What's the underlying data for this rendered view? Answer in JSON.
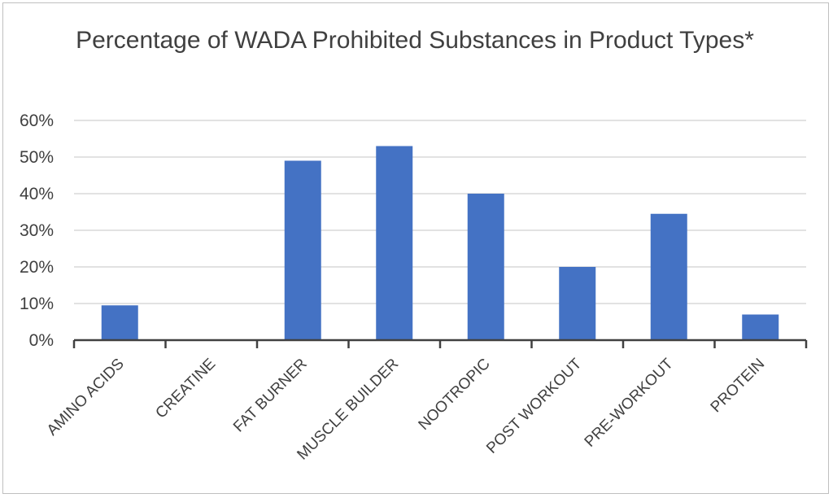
{
  "chart_data": {
    "type": "bar",
    "title": "Percentage of WADA Prohibited Substances in Product Types*",
    "xlabel": "",
    "ylabel": "",
    "categories": [
      "AMINO ACIDS",
      "CREATINE",
      "FAT BURNER",
      "MUSCLE BUILDER",
      "NOOTROPIC",
      "POST WORKOUT",
      "PRE-WORKOUT",
      "PROTEIN"
    ],
    "values": [
      9.5,
      0,
      49,
      53,
      40,
      20,
      34.5,
      7
    ],
    "ylim": [
      0,
      60
    ],
    "y_ticks": [
      0,
      10,
      20,
      30,
      40,
      50,
      60
    ],
    "y_tick_labels": [
      "0%",
      "10%",
      "20%",
      "30%",
      "40%",
      "50%",
      "60%"
    ],
    "grid": true,
    "legend": "none",
    "bar_color": "#4472C4"
  }
}
